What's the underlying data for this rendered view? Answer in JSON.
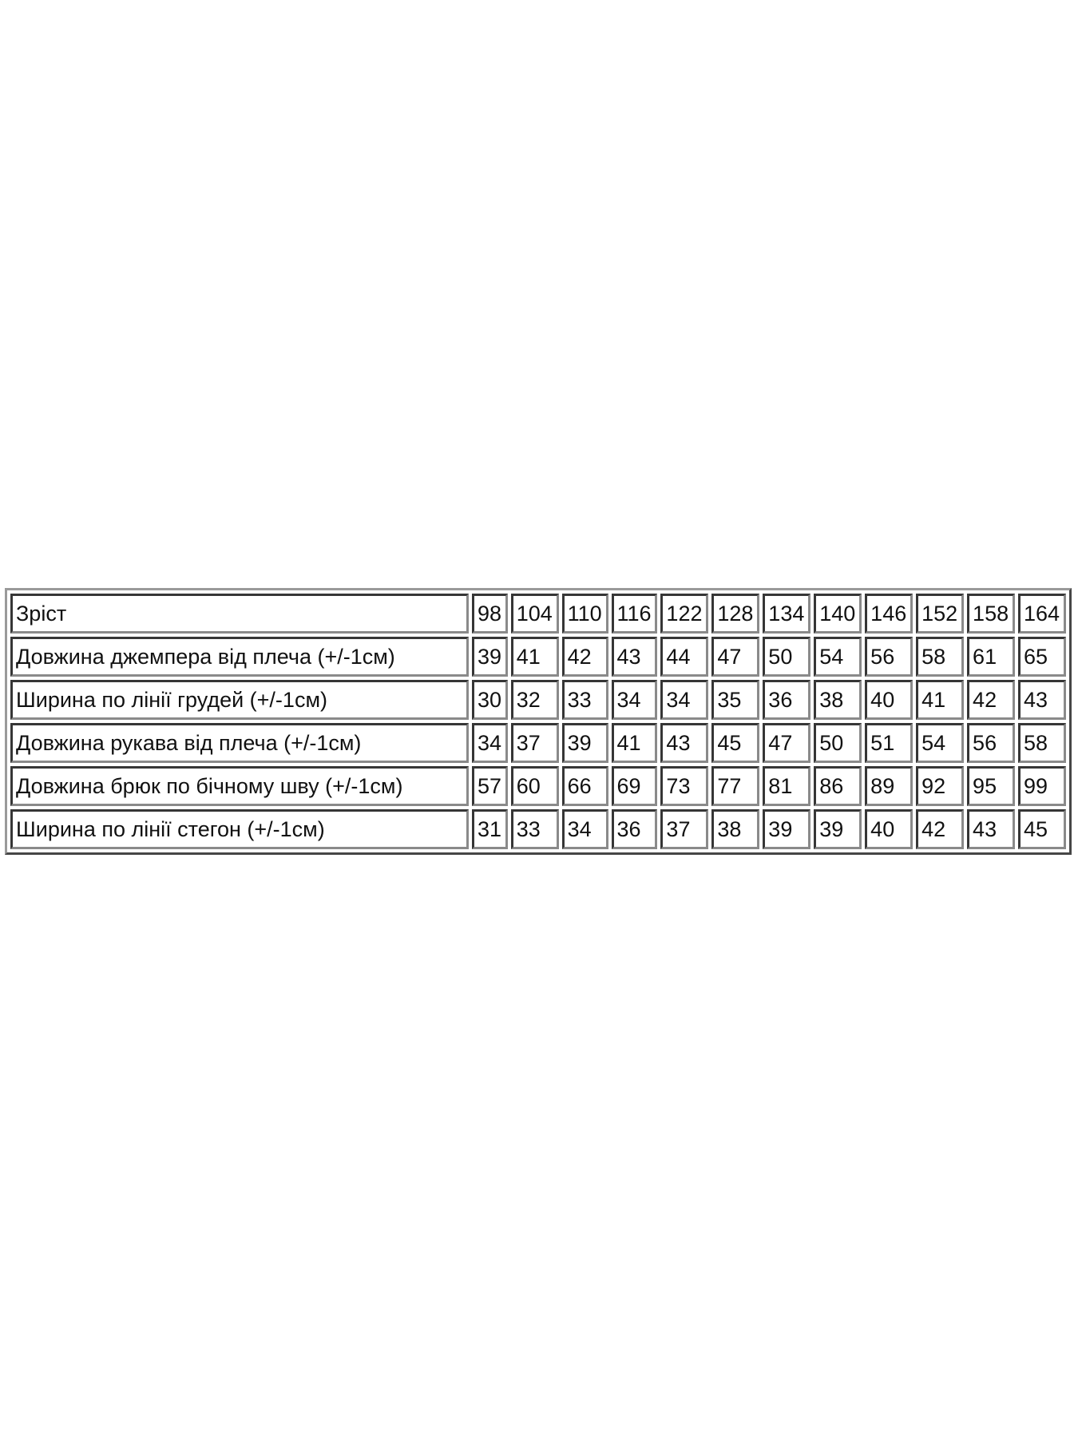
{
  "table": {
    "header": {
      "label": "Зріст",
      "sizes": [
        "98",
        "104",
        "110",
        "116",
        "122",
        "128",
        "134",
        "140",
        "146",
        "152",
        "158",
        "164"
      ]
    },
    "rows": [
      {
        "label": "Довжина джемпера від плеча (+/-1см)",
        "values": [
          "39",
          "41",
          "42",
          "43",
          "44",
          "47",
          "50",
          "54",
          "56",
          "58",
          "61",
          "65"
        ]
      },
      {
        "label": "Ширина по лінії грудей (+/-1см)",
        "values": [
          "30",
          "32",
          "33",
          "34",
          "34",
          "35",
          "36",
          "38",
          "40",
          "41",
          "42",
          "43"
        ]
      },
      {
        "label": "Довжина рукава від плеча (+/-1см)",
        "values": [
          "34",
          "37",
          "39",
          "41",
          "43",
          "45",
          "47",
          "50",
          "51",
          "54",
          "56",
          "58"
        ]
      },
      {
        "label": "Довжина брюк по бічному шву (+/-1см)",
        "values": [
          "57",
          "60",
          "66",
          "69",
          "73",
          "77",
          "81",
          "86",
          "89",
          "92",
          "95",
          "99"
        ]
      },
      {
        "label": "Ширина по лінії стегон (+/-1см)",
        "values": [
          "31",
          "33",
          "34",
          "36",
          "37",
          "38",
          "39",
          "39",
          "40",
          "42",
          "43",
          "45"
        ]
      }
    ]
  }
}
